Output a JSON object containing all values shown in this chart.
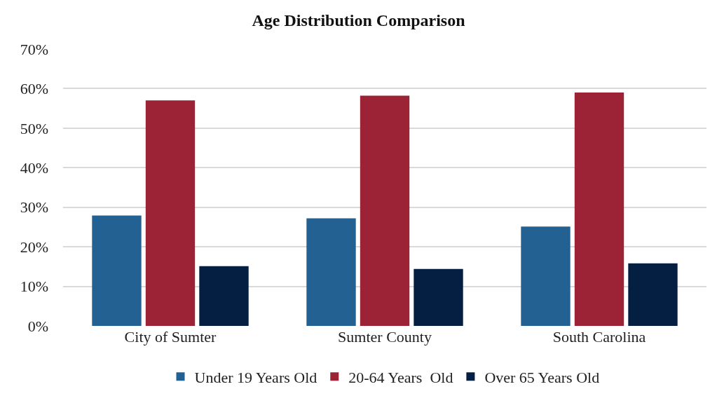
{
  "chart_data": {
    "type": "bar",
    "title": "Age Distribution Comparison",
    "categories": [
      "City of Sumter",
      "Sumter County",
      "South Carolina"
    ],
    "series": [
      {
        "name": "Under 19 Years Old",
        "color": "#236192",
        "values": [
          27.9,
          27.2,
          25.1
        ]
      },
      {
        "name": "20-64 Years  Old",
        "color": "#9b2335",
        "values": [
          57.0,
          58.2,
          59.0
        ]
      },
      {
        "name": "Over 65 Years Old",
        "color": "#051f42",
        "values": [
          15.1,
          14.4,
          15.8
        ]
      }
    ],
    "ylim": [
      0,
      70
    ],
    "yticks": [
      {
        "value": 0,
        "label": "0%"
      },
      {
        "value": 10,
        "label": "10%"
      },
      {
        "value": 20,
        "label": "20%"
      },
      {
        "value": 30,
        "label": "30%"
      },
      {
        "value": 40,
        "label": "40%"
      },
      {
        "value": 50,
        "label": "50%"
      },
      {
        "value": 60,
        "label": "60%"
      },
      {
        "value": 70,
        "label": "70%"
      }
    ],
    "grid": "y",
    "legend": "bottom"
  }
}
